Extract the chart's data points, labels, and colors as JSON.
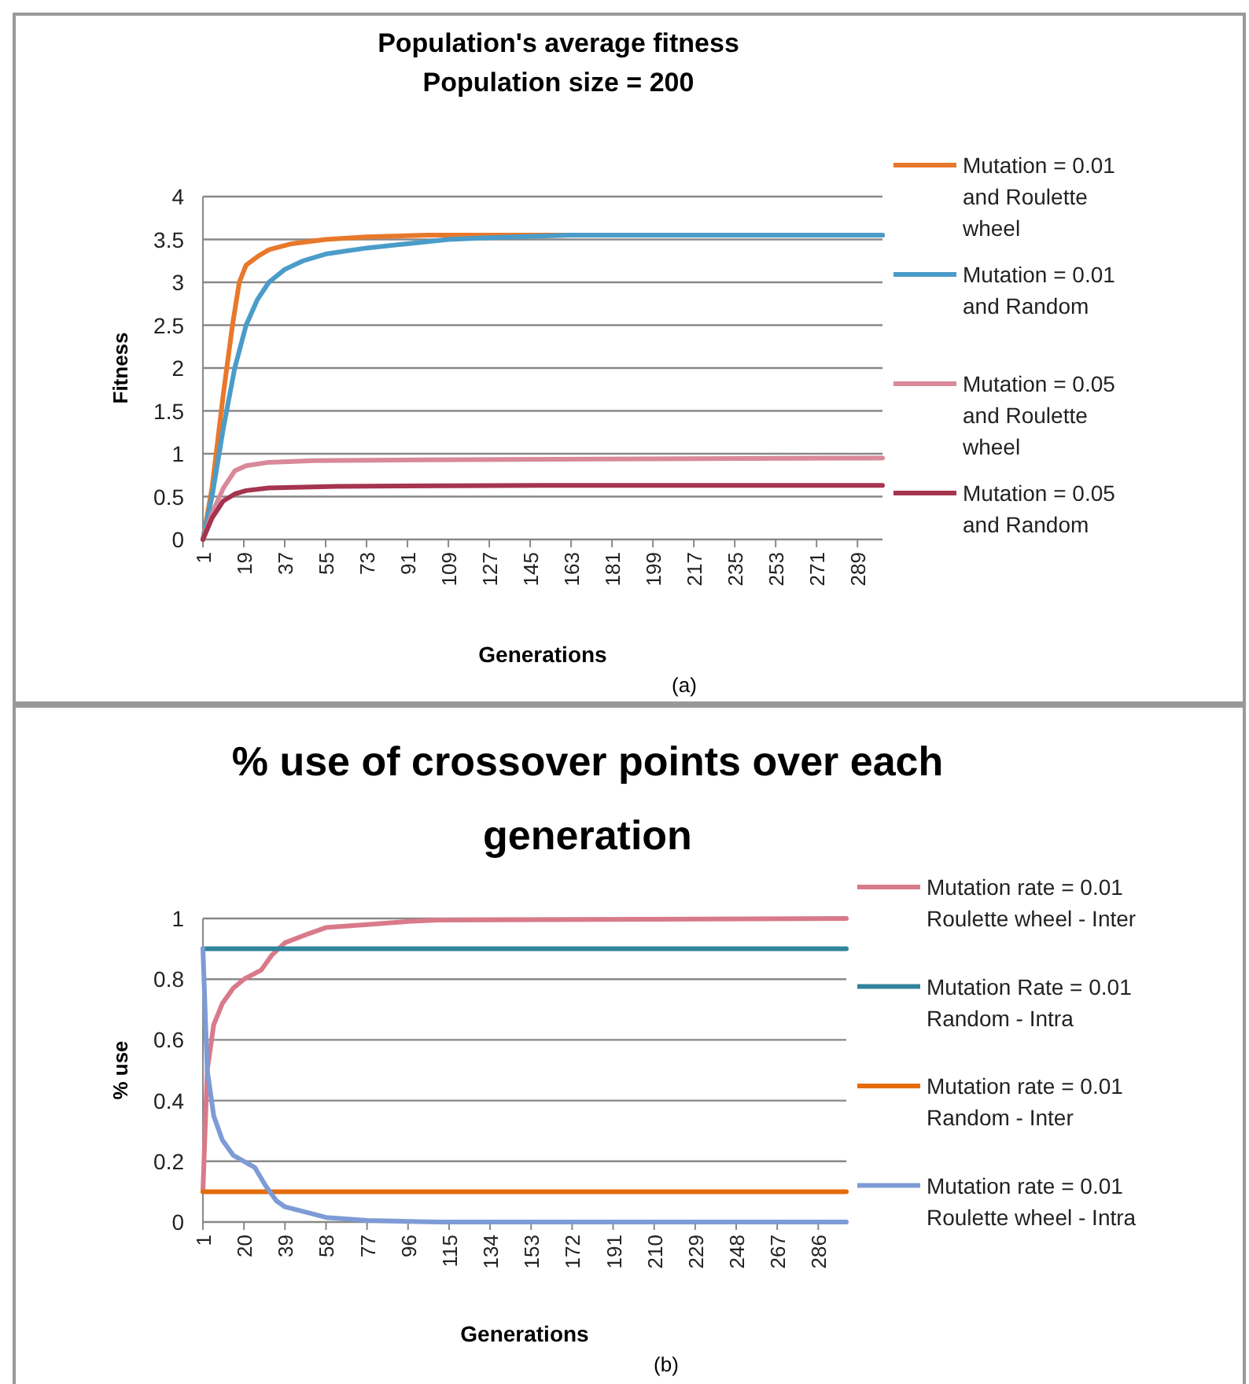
{
  "chart_data": [
    {
      "type": "line",
      "title": "Population's average fitness",
      "subtitle": "Population size = 200",
      "xlabel": "Generations",
      "ylabel": "Fitness",
      "annotations": [
        "(a)"
      ],
      "xlim": [
        1,
        300
      ],
      "xticks": [
        1,
        19,
        37,
        55,
        73,
        91,
        109,
        127,
        145,
        163,
        181,
        199,
        217,
        235,
        253,
        271,
        289
      ],
      "ylim": [
        0,
        4
      ],
      "yticks": [
        0,
        0.5,
        1,
        1.5,
        2,
        2.5,
        3,
        3.5,
        4
      ],
      "grid": "y",
      "legend": "right",
      "marker": "none",
      "line_style": "solid",
      "series": [
        {
          "name": "Mutation = 0.01 and Roulette wheel",
          "color": "#e8782a",
          "x": [
            1,
            5,
            10,
            14,
            17,
            20,
            25,
            30,
            40,
            55,
            73,
            100,
            150,
            300
          ],
          "values": [
            0,
            0.6,
            1.7,
            2.5,
            3.0,
            3.2,
            3.3,
            3.38,
            3.45,
            3.5,
            3.53,
            3.55,
            3.55,
            3.55
          ]
        },
        {
          "name": "Mutation = 0.01 and Random",
          "color": "#4a9cc9",
          "x": [
            1,
            5,
            10,
            15,
            20,
            25,
            30,
            37,
            45,
            55,
            73,
            91,
            109,
            127,
            163,
            300
          ],
          "values": [
            0,
            0.5,
            1.3,
            2.0,
            2.5,
            2.8,
            3.0,
            3.15,
            3.25,
            3.33,
            3.4,
            3.45,
            3.5,
            3.52,
            3.55,
            3.55
          ]
        },
        {
          "name": "Mutation = 0.05 and Roulette wheel",
          "color": "#d9899a",
          "x": [
            1,
            5,
            10,
            15,
            20,
            30,
            50,
            100,
            300
          ],
          "values": [
            0,
            0.3,
            0.6,
            0.8,
            0.86,
            0.9,
            0.92,
            0.93,
            0.95
          ]
        },
        {
          "name": "Mutation = 0.05 and Random",
          "color": "#a5344f",
          "x": [
            1,
            5,
            10,
            15,
            20,
            30,
            60,
            150,
            300
          ],
          "values": [
            0,
            0.25,
            0.45,
            0.53,
            0.57,
            0.6,
            0.62,
            0.63,
            0.63
          ]
        }
      ]
    },
    {
      "type": "line",
      "title": "% use of crossover points over each generation",
      "xlabel": "Generations",
      "ylabel": "% use",
      "annotations": [
        "(b)"
      ],
      "xlim": [
        1,
        299
      ],
      "xticks": [
        1,
        20,
        39,
        58,
        77,
        96,
        115,
        134,
        153,
        172,
        191,
        210,
        229,
        248,
        267,
        286
      ],
      "ylim": [
        0,
        1
      ],
      "yticks": [
        0,
        0.2,
        0.4,
        0.6,
        0.8,
        1
      ],
      "grid": "y",
      "legend": "right",
      "marker": "none",
      "line_style": "solid",
      "series": [
        {
          "name": "Mutation rate = 0.01 Roulette wheel - Inter",
          "color": "#d87a8a",
          "x": [
            1,
            3,
            6,
            10,
            15,
            20,
            28,
            33,
            39,
            50,
            58,
            77,
            96,
            110,
            299
          ],
          "values": [
            0.1,
            0.5,
            0.65,
            0.72,
            0.77,
            0.8,
            0.83,
            0.88,
            0.92,
            0.95,
            0.97,
            0.98,
            0.99,
            0.995,
            1
          ]
        },
        {
          "name": "Mutation Rate = 0.01 Random - Intra",
          "color": "#31849b",
          "x": [
            1,
            299
          ],
          "values": [
            0.9,
            0.9
          ]
        },
        {
          "name": "Mutation rate = 0.01 Random - Inter",
          "color": "#e46c0a",
          "x": [
            1,
            299
          ],
          "values": [
            0.1,
            0.1
          ]
        },
        {
          "name": "Mutation rate = 0.01 Roulette wheel - Intra",
          "color": "#7e9bd6",
          "x": [
            1,
            3,
            6,
            10,
            15,
            20,
            25,
            30,
            35,
            39,
            50,
            58,
            77,
            110,
            299
          ],
          "values": [
            0.9,
            0.5,
            0.35,
            0.27,
            0.22,
            0.2,
            0.18,
            0.12,
            0.07,
            0.05,
            0.03,
            0.015,
            0.005,
            0,
            0
          ]
        }
      ]
    }
  ]
}
